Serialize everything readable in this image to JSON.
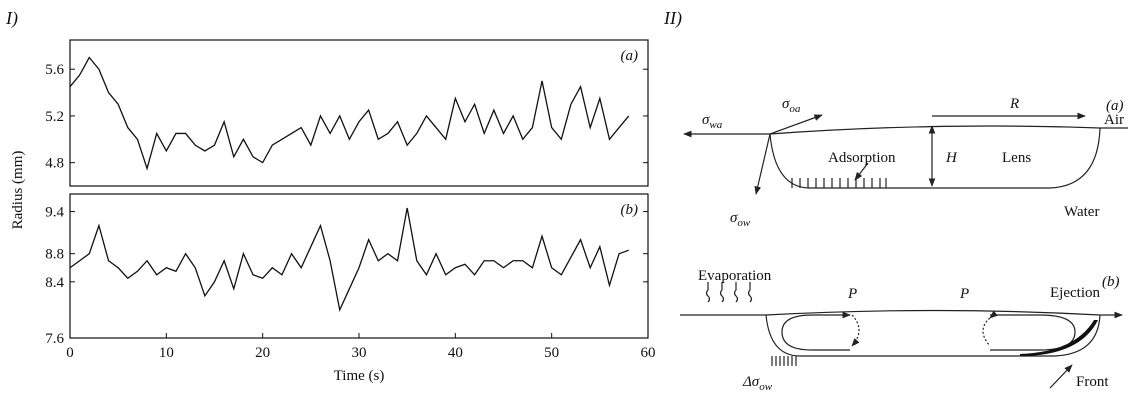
{
  "panel_labels": [
    "I)",
    "II)"
  ],
  "shared_y_label": "Radius (mm)",
  "chart_data": [
    {
      "type": "line",
      "annotation": "(a)",
      "color": "#111111",
      "x": [
        0,
        1,
        2,
        3,
        4,
        5,
        6,
        7,
        8,
        9,
        10,
        11,
        12,
        13,
        14,
        15,
        16,
        17,
        18,
        19,
        20,
        21,
        22,
        23,
        24,
        25,
        26,
        27,
        28,
        29,
        30,
        31,
        32,
        33,
        34,
        35,
        36,
        37,
        38,
        39,
        40,
        41,
        42,
        43,
        44,
        45,
        46,
        47,
        48,
        49,
        50,
        51,
        52,
        53,
        54,
        55,
        56,
        57,
        58
      ],
      "values": [
        5.45,
        5.55,
        5.7,
        5.6,
        5.4,
        5.3,
        5.1,
        5.0,
        4.75,
        5.05,
        4.9,
        5.05,
        5.05,
        4.95,
        4.9,
        4.95,
        5.15,
        4.85,
        5.0,
        4.85,
        4.8,
        4.95,
        5.0,
        5.05,
        5.1,
        4.95,
        5.2,
        5.05,
        5.2,
        5.0,
        5.15,
        5.25,
        5.0,
        5.05,
        5.15,
        4.95,
        5.05,
        5.2,
        5.1,
        5.0,
        5.35,
        5.15,
        5.3,
        5.05,
        5.25,
        5.05,
        5.2,
        5.0,
        5.1,
        5.5,
        5.1,
        5.0,
        5.3,
        5.45,
        5.1,
        5.35,
        5.0,
        5.1,
        5.2
      ],
      "xlim": [
        0,
        60
      ],
      "ylim": [
        4.6,
        5.85
      ],
      "yticks": [
        4.8,
        5.2,
        5.6
      ]
    },
    {
      "type": "line",
      "annotation": "(b)",
      "color": "#111111",
      "x_label": "Time (s)",
      "x": [
        0,
        1,
        2,
        3,
        4,
        5,
        6,
        7,
        8,
        9,
        10,
        11,
        12,
        13,
        14,
        15,
        16,
        17,
        18,
        19,
        20,
        21,
        22,
        23,
        24,
        25,
        26,
        27,
        28,
        29,
        30,
        31,
        32,
        33,
        34,
        35,
        36,
        37,
        38,
        39,
        40,
        41,
        42,
        43,
        44,
        45,
        46,
        47,
        48,
        49,
        50,
        51,
        52,
        53,
        54,
        55,
        56,
        57,
        58
      ],
      "values": [
        8.6,
        8.7,
        8.8,
        9.2,
        8.7,
        8.6,
        8.45,
        8.55,
        8.7,
        8.5,
        8.6,
        8.55,
        8.8,
        8.6,
        8.2,
        8.4,
        8.7,
        8.3,
        8.8,
        8.5,
        8.45,
        8.6,
        8.5,
        8.8,
        8.6,
        8.9,
        9.2,
        8.7,
        8.0,
        8.3,
        8.6,
        9.0,
        8.7,
        8.8,
        8.7,
        9.45,
        8.7,
        8.5,
        8.8,
        8.5,
        8.6,
        8.65,
        8.5,
        8.7,
        8.7,
        8.6,
        8.7,
        8.7,
        8.6,
        9.05,
        8.6,
        8.5,
        8.75,
        9.0,
        8.6,
        8.9,
        8.35,
        8.8,
        8.85
      ],
      "xlim": [
        0,
        60
      ],
      "ylim": [
        7.6,
        9.65
      ],
      "yticks": [
        7.6,
        8.4,
        8.8,
        9.4
      ],
      "xticks": [
        0,
        10,
        20,
        30,
        40,
        50,
        60
      ]
    }
  ],
  "diagram": {
    "a": {
      "label": "(a)",
      "sigma_wa": {
        "symbol": "σ",
        "sub": "wa"
      },
      "sigma_oa": {
        "symbol": "σ",
        "sub": "oa"
      },
      "R": "R",
      "air": "Air",
      "H": "H",
      "lens": "Lens",
      "adsorption": "Adsorption",
      "sigma_ow": {
        "symbol": "σ",
        "sub": "ow"
      },
      "water": "Water"
    },
    "b": {
      "label": "(b)",
      "evaporation": "Evaporation",
      "P_left": "P",
      "P_right": "P",
      "ejection": "Ejection",
      "delta_sigma_ow": {
        "symbol": "Δσ",
        "sub": "ow"
      },
      "front": "Front"
    }
  }
}
